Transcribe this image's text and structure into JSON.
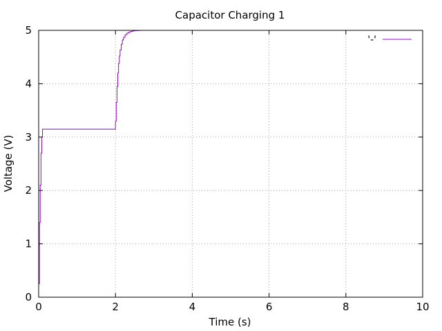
{
  "chart_data": {
    "type": "line",
    "title": "Capacitor Charging 1",
    "xlabel": "Time (s)",
    "ylabel": "Voltage (V)",
    "xlim": [
      0,
      10
    ],
    "ylim": [
      0,
      5
    ],
    "xticks": [
      0,
      2,
      4,
      6,
      8,
      10
    ],
    "xtick_labels": [
      "0",
      "2",
      "4",
      "6",
      "8",
      "10"
    ],
    "yticks": [
      0,
      1,
      2,
      3,
      4,
      5
    ],
    "ytick_labels": [
      "0",
      "1",
      "2",
      "3",
      "4",
      "5"
    ],
    "grid": true,
    "legend_position": "top-right",
    "series": [
      {
        "name": "'-'",
        "color": "#9400d3",
        "x": [
          0.0,
          0.02,
          0.04,
          0.06,
          0.08,
          0.1,
          0.12,
          0.5,
          1.0,
          1.5,
          1.99,
          2.0,
          2.02,
          2.04,
          2.06,
          2.08,
          2.1,
          2.12,
          2.15,
          2.18,
          2.21,
          2.25,
          2.3,
          2.35,
          2.4,
          2.45,
          2.5,
          2.55,
          2.6,
          2.65
        ],
        "y": [
          0.25,
          1.4,
          2.1,
          2.7,
          3.0,
          3.15,
          3.15,
          3.15,
          3.15,
          3.15,
          3.15,
          3.3,
          3.65,
          3.95,
          4.2,
          4.38,
          4.52,
          4.63,
          4.74,
          4.82,
          4.87,
          4.92,
          4.95,
          4.97,
          4.98,
          4.99,
          4.995,
          4.997,
          4.999,
          5.0
        ]
      }
    ]
  }
}
